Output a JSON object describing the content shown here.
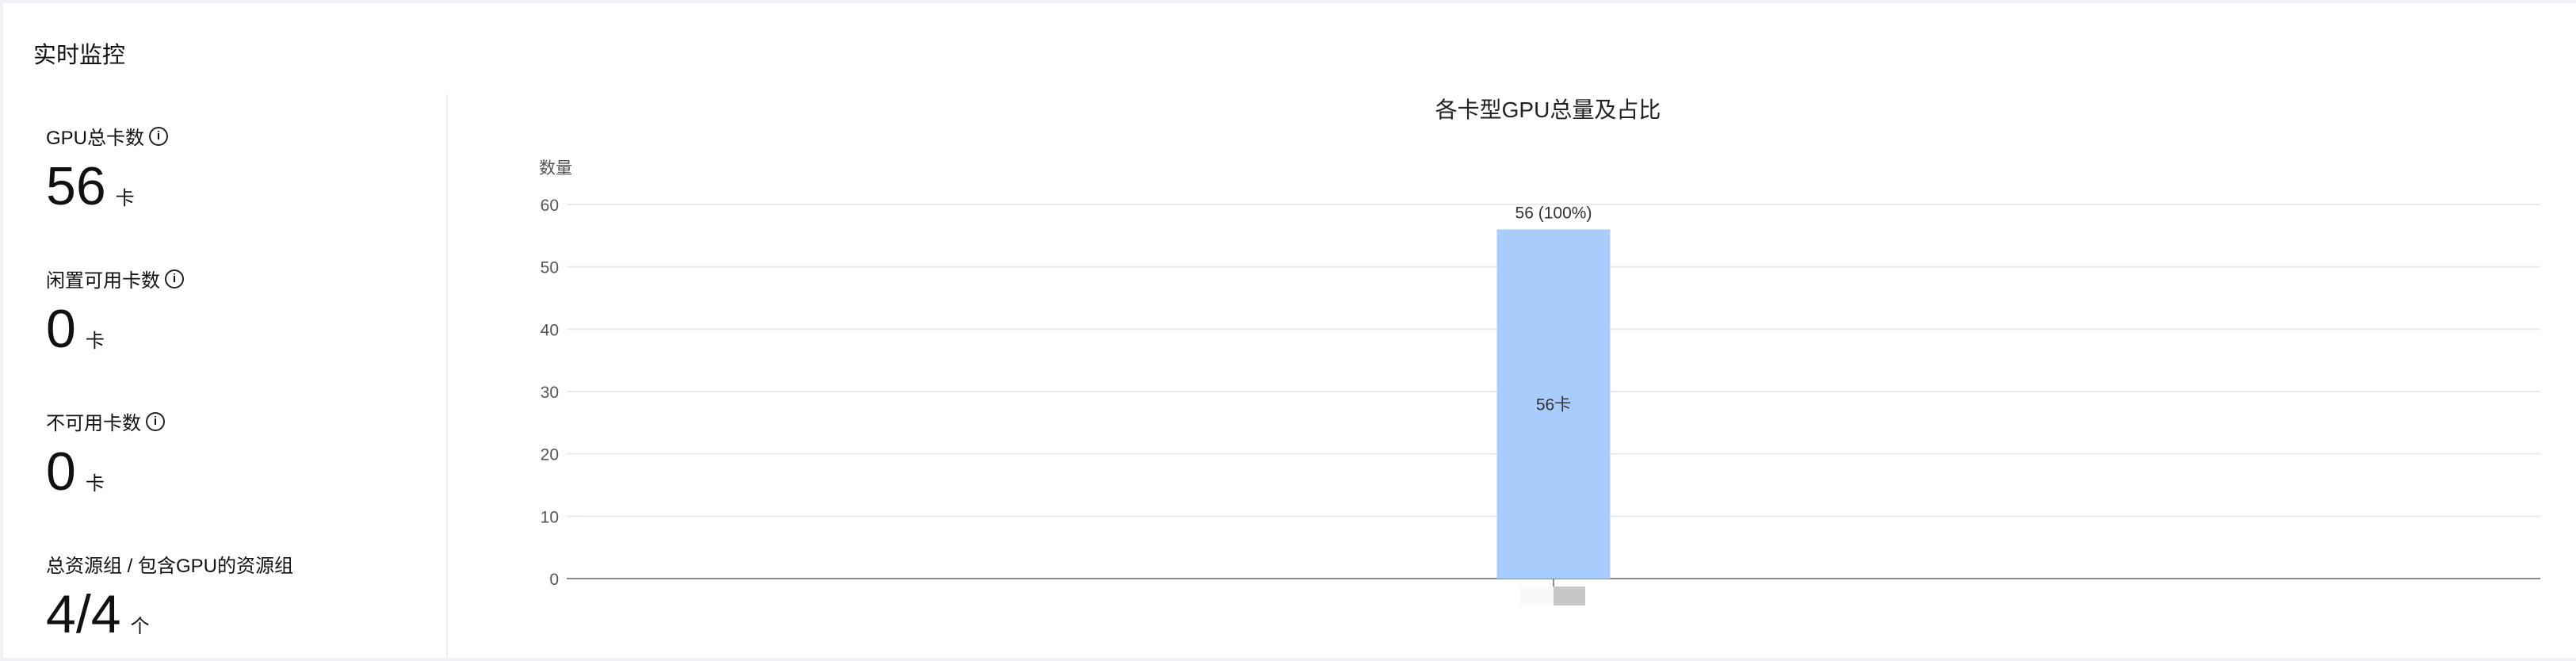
{
  "header": {
    "title": "实时监控"
  },
  "stats": [
    {
      "label": "GPU总卡数",
      "value": "56",
      "unit": "卡",
      "info": true
    },
    {
      "label": "闲置可用卡数",
      "value": "0",
      "unit": "卡",
      "info": true
    },
    {
      "label": "不可用卡数",
      "value": "0",
      "unit": "卡",
      "info": true
    },
    {
      "label": "总资源组 / 包含GPU的资源组",
      "value": "4/4",
      "unit": "个",
      "info": false
    }
  ],
  "chart_data": {
    "type": "bar",
    "title": "各卡型GPU总量及占比",
    "ylabel": "数量",
    "xlabel": "",
    "categories": [
      ""
    ],
    "values": [
      56
    ],
    "top_labels": [
      "56 (100%)"
    ],
    "inner_labels": [
      "56卡"
    ],
    "ylim": [
      0,
      60
    ],
    "yticks": [
      0,
      10,
      20,
      30,
      40,
      50,
      60
    ],
    "grid": true,
    "colors": {
      "bar": "#a8cdfc",
      "grid": "#e8ebf0",
      "axis": "#888a90",
      "text": "#555"
    }
  }
}
